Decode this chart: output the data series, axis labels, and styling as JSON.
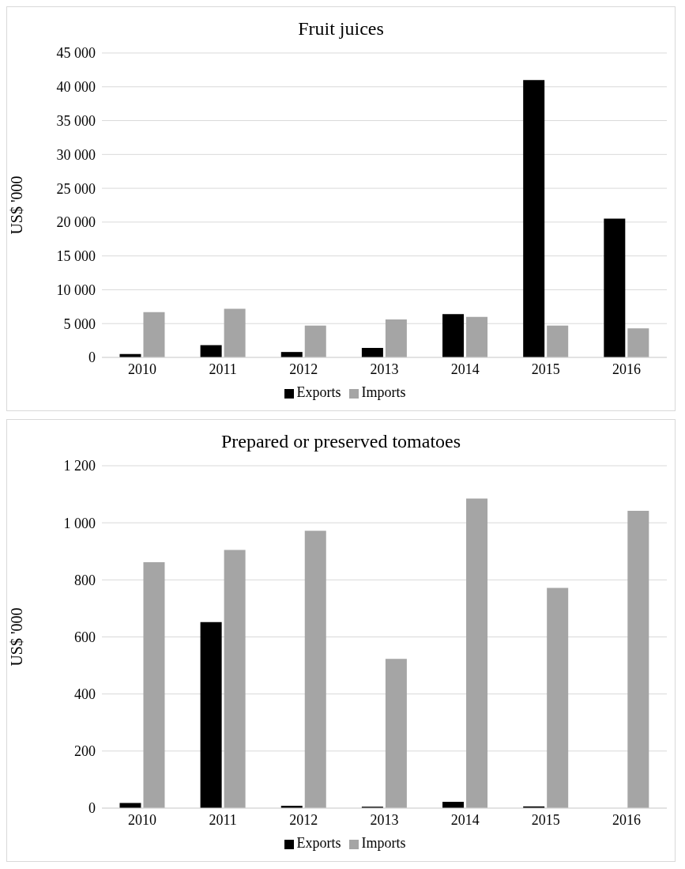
{
  "chart_data": [
    {
      "type": "bar",
      "title": "Fruit juices",
      "ylabel": "US$ '000",
      "categories": [
        "2010",
        "2011",
        "2012",
        "2013",
        "2014",
        "2015",
        "2016"
      ],
      "series": [
        {
          "name": "Exports",
          "color": "#000000",
          "values": [
            500,
            1800,
            800,
            1400,
            6400,
            41000,
            20500
          ]
        },
        {
          "name": "Imports",
          "color": "#a5a5a5",
          "values": [
            6700,
            7200,
            4700,
            5600,
            6000,
            4700,
            4300
          ]
        }
      ],
      "ylim": [
        0,
        45000
      ],
      "yticks": [
        0,
        {
          "value": 5000,
          "label": "5 000"
        },
        {
          "value": 10000,
          "label": "10 000"
        },
        {
          "value": 15000,
          "label": "15 000"
        },
        {
          "value": 20000,
          "label": "20 000"
        },
        {
          "value": 25000,
          "label": "25 000"
        },
        {
          "value": 30000,
          "label": "30 000"
        },
        {
          "value": 35000,
          "label": "35 000"
        },
        {
          "value": 40000,
          "label": "40 000"
        },
        {
          "value": 45000,
          "label": "45 000"
        }
      ],
      "grid": "y",
      "legend": "bottom"
    },
    {
      "type": "bar",
      "title": "Prepared or preserved tomatoes",
      "ylabel": "US$ '000",
      "categories": [
        "2010",
        "2011",
        "2012",
        "2013",
        "2014",
        "2015",
        "2016"
      ],
      "series": [
        {
          "name": "Exports",
          "color": "#000000",
          "values": [
            18,
            652,
            8,
            5,
            22,
            6,
            0
          ]
        },
        {
          "name": "Imports",
          "color": "#a5a5a5",
          "values": [
            862,
            905,
            972,
            523,
            1085,
            772,
            1042
          ]
        }
      ],
      "ylim": [
        0,
        1200
      ],
      "yticks": [
        0,
        200,
        400,
        600,
        800,
        {
          "value": 1000,
          "label": "1 000"
        },
        {
          "value": 1200,
          "label": "1 200"
        }
      ],
      "grid": "y",
      "legend": "bottom"
    }
  ]
}
